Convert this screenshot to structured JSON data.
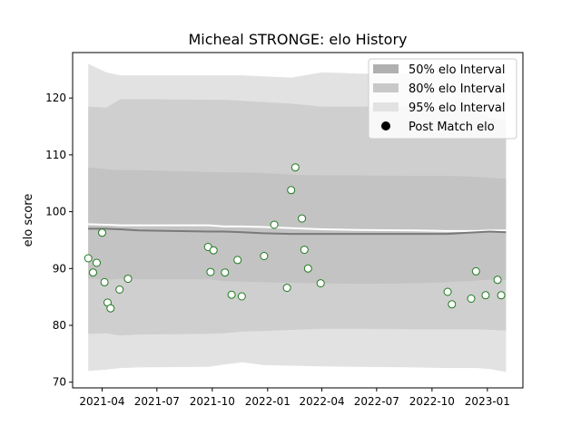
{
  "chart_data": {
    "type": "scatter",
    "title": "Micheal STRONGE: elo History",
    "xlabel": "",
    "ylabel": "elo score",
    "ylim": [
      69,
      128
    ],
    "xlim": [
      "2021-02-11",
      "2023-03-01"
    ],
    "yticks": [
      70,
      80,
      90,
      100,
      110,
      120
    ],
    "xticks": [
      "2021-04",
      "2021-07",
      "2021-10",
      "2022-01",
      "2022-04",
      "2022-07",
      "2022-10",
      "2023-01"
    ],
    "grid": false,
    "legend_position": "top-right",
    "legend": [
      {
        "label": "50% elo Interval",
        "kind": "patch",
        "color": "#b0b0b0"
      },
      {
        "label": "80% elo Interval",
        "kind": "patch",
        "color": "#c8c8c8"
      },
      {
        "label": "95% elo Interval",
        "kind": "patch",
        "color": "#e2e2e2"
      },
      {
        "label": "Post Match elo",
        "kind": "marker",
        "color": "#000000"
      }
    ],
    "band_colors": {
      "outer": "#e2e2e2",
      "middle": "#cfcfcf",
      "inner": "#c3c3c3"
    },
    "mean_line_color": "#7a7a7a",
    "median_line_color": "#ffffff",
    "marker_edge_color": "#1e7a1e",
    "marker_face_color": "#ffffff",
    "bands": {
      "dates": [
        "2021-03-09",
        "2021-04-08",
        "2021-05-01",
        "2021-06-01",
        "2021-09-25",
        "2021-10-20",
        "2021-11-20",
        "2021-12-25",
        "2022-02-10",
        "2022-04-01",
        "2022-06-01",
        "2022-09-01",
        "2022-10-25",
        "2022-12-01",
        "2022-12-15",
        "2023-01-05",
        "2023-02-01"
      ],
      "p95_upper": [
        126,
        124.5,
        124,
        124,
        124,
        124,
        124,
        123.8,
        123.6,
        124.5,
        124.3,
        124.3,
        124.3,
        124.3,
        124.2,
        124.0,
        123.8
      ],
      "p80_upper": [
        118.5,
        118.3,
        119.8,
        119.8,
        119.7,
        119.7,
        119.5,
        119.3,
        119.0,
        118.5,
        118.5,
        118.5,
        118.5,
        118.0,
        117.5,
        116.5,
        116.0
      ],
      "p50_upper": [
        107.8,
        107.5,
        107.3,
        107.3,
        107.0,
        106.9,
        106.9,
        106.8,
        106.5,
        106.4,
        106.4,
        106.3,
        106.3,
        106.2,
        106.1,
        106.0,
        105.8
      ],
      "p50_lower": [
        88.2,
        88.0,
        88.2,
        88.1,
        88.1,
        87.8,
        87.7,
        87.6,
        87.5,
        87.4,
        87.3,
        87.4,
        87.6,
        87.8,
        87.9,
        88.0,
        88.0
      ],
      "p80_lower": [
        78.5,
        78.6,
        78.2,
        78.4,
        78.5,
        78.6,
        78.9,
        79.0,
        79.2,
        79.4,
        79.4,
        79.3,
        79.3,
        79.3,
        79.3,
        79.2,
        79.1
      ],
      "p95_lower": [
        72.0,
        72.2,
        72.5,
        72.6,
        72.7,
        73.1,
        73.5,
        73.0,
        72.9,
        72.8,
        72.7,
        72.6,
        72.5,
        72.5,
        72.5,
        72.3,
        71.8
      ],
      "mean": [
        97.0,
        97.0,
        96.9,
        96.7,
        96.5,
        96.5,
        96.4,
        96.2,
        96.1,
        96.1,
        96.1,
        96.1,
        96.1,
        96.3,
        96.4,
        96.5,
        96.4
      ],
      "median": [
        97.8,
        97.7,
        97.6,
        97.6,
        97.6,
        97.4,
        97.4,
        97.3,
        97.1,
        96.9,
        96.8,
        96.7,
        96.6,
        96.6,
        96.6,
        96.7,
        96.7
      ]
    },
    "points": [
      {
        "x": "2021-03-09",
        "y": 91.8
      },
      {
        "x": "2021-03-17",
        "y": 89.3
      },
      {
        "x": "2021-03-23",
        "y": 91.0
      },
      {
        "x": "2021-04-01",
        "y": 96.3
      },
      {
        "x": "2021-04-05",
        "y": 87.6
      },
      {
        "x": "2021-04-10",
        "y": 84.0
      },
      {
        "x": "2021-04-15",
        "y": 83.0
      },
      {
        "x": "2021-04-30",
        "y": 86.3
      },
      {
        "x": "2021-05-14",
        "y": 88.2
      },
      {
        "x": "2021-09-24",
        "y": 93.8
      },
      {
        "x": "2021-09-28",
        "y": 89.4
      },
      {
        "x": "2021-10-03",
        "y": 93.2
      },
      {
        "x": "2021-10-22",
        "y": 89.3
      },
      {
        "x": "2021-11-02",
        "y": 85.4
      },
      {
        "x": "2021-11-12",
        "y": 91.5
      },
      {
        "x": "2021-11-19",
        "y": 85.1
      },
      {
        "x": "2021-12-26",
        "y": 92.2
      },
      {
        "x": "2022-01-12",
        "y": 97.7
      },
      {
        "x": "2022-02-02",
        "y": 86.6
      },
      {
        "x": "2022-02-09",
        "y": 103.8
      },
      {
        "x": "2022-02-16",
        "y": 107.8
      },
      {
        "x": "2022-02-27",
        "y": 98.8
      },
      {
        "x": "2022-03-03",
        "y": 93.3
      },
      {
        "x": "2022-03-09",
        "y": 90.0
      },
      {
        "x": "2022-03-30",
        "y": 87.4
      },
      {
        "x": "2022-10-27",
        "y": 85.9
      },
      {
        "x": "2022-11-03",
        "y": 83.7
      },
      {
        "x": "2022-12-05",
        "y": 84.7
      },
      {
        "x": "2022-12-13",
        "y": 89.5
      },
      {
        "x": "2022-12-29",
        "y": 85.3
      },
      {
        "x": "2023-01-18",
        "y": 88.0
      },
      {
        "x": "2023-01-24",
        "y": 85.3
      }
    ]
  }
}
